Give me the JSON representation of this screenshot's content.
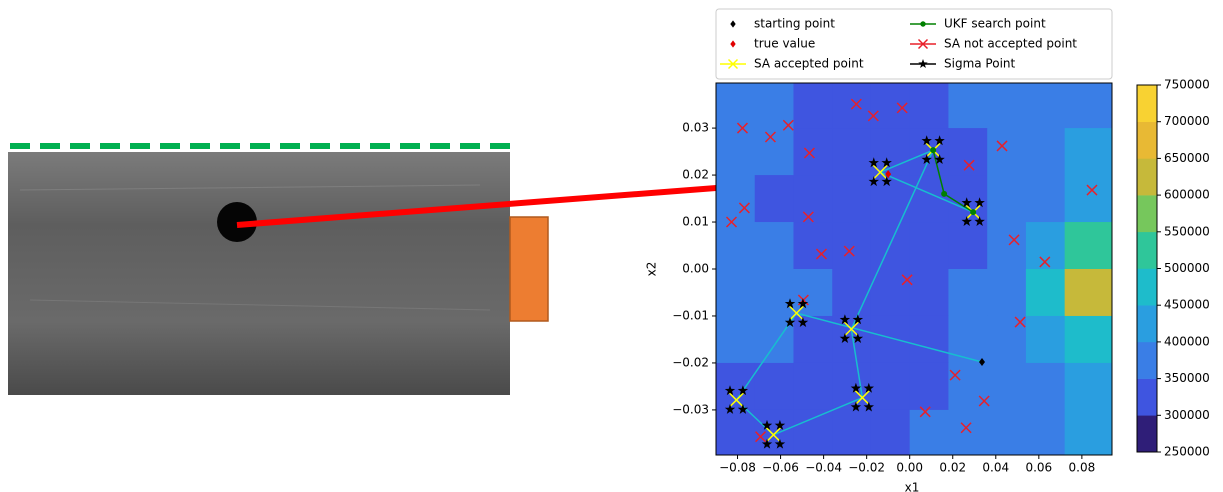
{
  "chart_data": {
    "type": "contour",
    "xlabel": "x1",
    "ylabel": "x2",
    "xlim": [
      -0.09,
      0.094
    ],
    "ylim": [
      -0.0396,
      0.0396
    ],
    "xticks": [
      {
        "value": -0.08,
        "label": "−0.08"
      },
      {
        "value": -0.06,
        "label": "−0.06"
      },
      {
        "value": -0.04,
        "label": "−0.04"
      },
      {
        "value": -0.02,
        "label": "−0.02"
      },
      {
        "value": 0,
        "label": "0.00"
      },
      0.02,
      0.04,
      0.06,
      0.08
    ],
    "yticks": [
      {
        "value": -0.03,
        "label": "−0.03"
      },
      {
        "value": -0.02,
        "label": "−0.02"
      },
      {
        "value": -0.01,
        "label": "−0.01"
      },
      {
        "value": 0,
        "label": "0.00"
      },
      0.01,
      0.02,
      0.03
    ],
    "colorbar": {
      "levels": [
        250000,
        300000,
        350000,
        400000,
        450000,
        500000,
        550000,
        600000,
        650000,
        700000,
        750000
      ],
      "colors": [
        "#2f1e78",
        "#3f55e0",
        "#3a7ee6",
        "#2a9ee0",
        "#1ebccb",
        "#2fc69a",
        "#76c75c",
        "#c6b93a",
        "#e8b934",
        "#f8d232"
      ],
      "ticks": [
        250000,
        300000,
        350000,
        400000,
        450000,
        500000,
        550000,
        600000,
        650000,
        700000,
        750000
      ]
    },
    "contour": {
      "x": [
        -0.081,
        -0.063,
        -0.045,
        -0.027,
        -0.009,
        0.009,
        0.027,
        0.045,
        0.063,
        0.081
      ],
      "y": [
        0.035,
        0.025,
        0.015,
        0.005,
        -0.005,
        -0.015,
        -0.025,
        -0.035
      ],
      "z": [
        [
          380000,
          370000,
          340000,
          330000,
          320000,
          330000,
          360000,
          370000,
          380000,
          380000
        ],
        [
          370000,
          360000,
          330000,
          320000,
          330000,
          320000,
          340000,
          360000,
          380000,
          400000
        ],
        [
          360000,
          340000,
          320000,
          310000,
          320000,
          320000,
          330000,
          360000,
          390000,
          430000
        ],
        [
          370000,
          360000,
          330000,
          320000,
          320000,
          330000,
          340000,
          370000,
          420000,
          520000
        ],
        [
          380000,
          370000,
          350000,
          330000,
          320000,
          330000,
          350000,
          380000,
          450000,
          620000
        ],
        [
          360000,
          350000,
          340000,
          330000,
          320000,
          330000,
          350000,
          380000,
          410000,
          460000
        ],
        [
          330000,
          320000,
          320000,
          320000,
          330000,
          340000,
          360000,
          370000,
          390000,
          420000
        ],
        [
          320000,
          320000,
          320000,
          330000,
          340000,
          350000,
          360000,
          380000,
          390000,
          400000
        ]
      ]
    },
    "trajectory": {
      "color": "#17becf",
      "x": [
        0.0336,
        -0.0526,
        -0.0805,
        -0.0633,
        -0.022,
        -0.0271,
        0.0109,
        -0.0137,
        0.0295
      ],
      "y": [
        -0.0198,
        -0.0094,
        -0.0279,
        -0.0353,
        -0.0274,
        -0.0128,
        0.0253,
        0.0206,
        0.0121
      ]
    },
    "series": [
      {
        "name": "starting point",
        "color": "#000000",
        "marker": "diamond",
        "x": [
          0.0336
        ],
        "y": [
          -0.0198
        ]
      },
      {
        "name": "true value",
        "color": "#e00000",
        "marker": "diamond",
        "x": [
          -0.01
        ],
        "y": [
          0.0202
        ]
      },
      {
        "name": "SA accepted point",
        "color": "#ffff00",
        "marker": "x",
        "legend_line": true,
        "x": [
          0.0109,
          0.0295,
          -0.0526,
          -0.0271,
          -0.0805,
          -0.0633,
          -0.022,
          -0.0137
        ],
        "y": [
          0.0253,
          0.0121,
          -0.0094,
          -0.0128,
          -0.0279,
          -0.0353,
          -0.0274,
          0.0206
        ]
      },
      {
        "name": "UKF search point",
        "color": "#008000",
        "marker": "dot",
        "line": true,
        "legend_line": true,
        "x": [
          0.0109,
          0.016,
          0.0295
        ],
        "y": [
          0.0253,
          0.016,
          0.0121
        ]
      },
      {
        "name": "SA not accepted point",
        "color": "#e8202a",
        "marker": "x",
        "legend_line": true,
        "x": [
          -0.0777,
          -0.0647,
          -0.0564,
          -0.0466,
          -0.0248,
          -0.0169,
          -0.0035,
          -0.0768,
          -0.0828,
          -0.0471,
          -0.041,
          -0.0281,
          -0.0012,
          0.0276,
          0.0429,
          0.0485,
          0.0628,
          0.0513,
          0.0847,
          0.0211,
          0.0262,
          0.0346,
          -0.0494,
          -0.0693,
          0.0072
        ],
        "y": [
          0.03,
          0.0281,
          0.0306,
          0.0247,
          0.0351,
          0.0326,
          0.0343,
          0.013,
          0.01,
          0.0111,
          0.0032,
          0.0038,
          -0.0023,
          0.0221,
          0.0262,
          0.0062,
          0.0015,
          -0.0113,
          0.0168,
          -0.0226,
          -0.0338,
          -0.0281,
          -0.0066,
          -0.0357,
          -0.0304
        ]
      },
      {
        "name": "Sigma Point",
        "color": "#000000",
        "marker": "star",
        "legend_line": true,
        "x": [
          0.0079,
          0.0139,
          0.0079,
          0.0139,
          0.0265,
          0.0325,
          0.0265,
          0.0325,
          -0.0556,
          -0.0496,
          -0.0556,
          -0.0496,
          -0.0301,
          -0.0241,
          -0.0301,
          -0.0241,
          -0.0835,
          -0.0775,
          -0.0835,
          -0.0775,
          -0.0663,
          -0.0603,
          -0.0663,
          -0.0603,
          -0.025,
          -0.019,
          -0.025,
          -0.019,
          -0.0167,
          -0.0107,
          -0.0167,
          -0.0107
        ],
        "y": [
          0.0273,
          0.0273,
          0.0233,
          0.0233,
          0.0141,
          0.0141,
          0.0101,
          0.0101,
          -0.0074,
          -0.0074,
          -0.0114,
          -0.0114,
          -0.0108,
          -0.0108,
          -0.0148,
          -0.0148,
          -0.0259,
          -0.0259,
          -0.0299,
          -0.0299,
          -0.0333,
          -0.0333,
          -0.0373,
          -0.0373,
          -0.0254,
          -0.0254,
          -0.0294,
          -0.0294,
          0.0226,
          0.0226,
          0.0186,
          0.0186
        ]
      }
    ]
  }
}
